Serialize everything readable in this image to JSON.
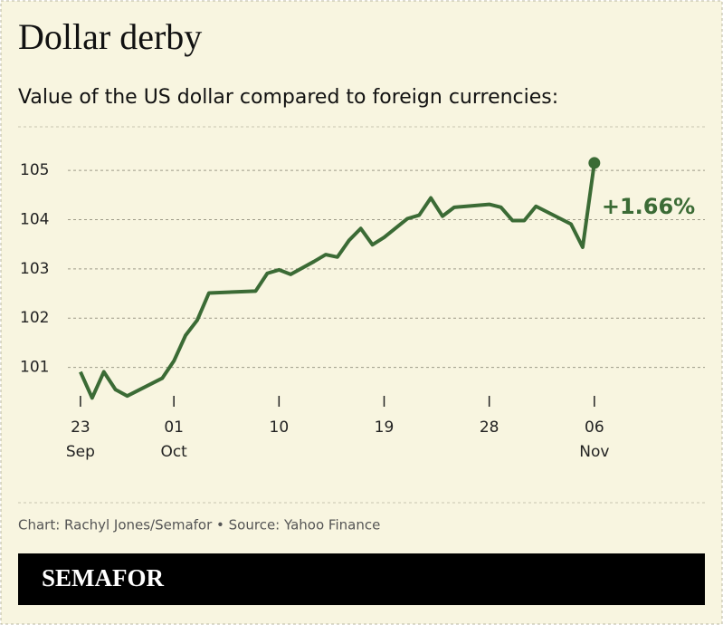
{
  "chart_data": {
    "type": "line",
    "title": "Dollar derby",
    "subtitle": "Value of the US dollar compared to foreign currencies:",
    "annotation": "+1.66%",
    "source": "Chart: Rachyl Jones/Semafor • Source: Yahoo Finance",
    "brand": "SEMAFOR",
    "x": [
      "Sep 23",
      "Sep 24",
      "Sep 25",
      "Sep 26",
      "Sep 27",
      "Sep 30",
      "Oct 1",
      "Oct 2",
      "Oct 3",
      "Oct 4",
      "Oct 8",
      "Oct 9",
      "Oct 10",
      "Oct 11",
      "Oct 13",
      "Oct 14",
      "Oct 15",
      "Oct 16",
      "Oct 17",
      "Oct 18",
      "Oct 19",
      "Oct 21",
      "Oct 22",
      "Oct 23",
      "Oct 24",
      "Oct 25",
      "Oct 28",
      "Oct 29",
      "Oct 30",
      "Oct 31",
      "Nov 1",
      "Nov 4",
      "Nov 5",
      "Nov 6"
    ],
    "values": [
      100.91,
      100.38,
      100.91,
      100.55,
      100.42,
      100.78,
      101.13,
      101.65,
      101.96,
      102.51,
      102.55,
      102.91,
      102.98,
      102.89,
      103.15,
      103.29,
      103.24,
      103.58,
      103.82,
      103.49,
      103.64,
      104.02,
      104.09,
      104.44,
      104.07,
      104.25,
      104.31,
      104.25,
      103.98,
      103.98,
      104.27,
      103.91,
      103.44,
      105.15
    ],
    "color": "#3b6b35",
    "xlim": [
      "Sep 22",
      "Nov 15"
    ],
    "xticks": [
      {
        "value": "Sep 23",
        "label": [
          "23",
          "Sep"
        ]
      },
      {
        "value": "Oct 1",
        "label": [
          "01",
          "Oct"
        ]
      },
      {
        "value": "Oct 10",
        "label": [
          "10"
        ]
      },
      {
        "value": "Oct 19",
        "label": [
          "19"
        ]
      },
      {
        "value": "Oct 28",
        "label": [
          "28"
        ]
      },
      {
        "value": "Nov 6",
        "label": [
          "06",
          "Nov"
        ]
      }
    ],
    "ylim": [
      100.0,
      105.7
    ],
    "yticks": [
      101,
      102,
      103,
      104,
      105
    ],
    "grid": true
  }
}
